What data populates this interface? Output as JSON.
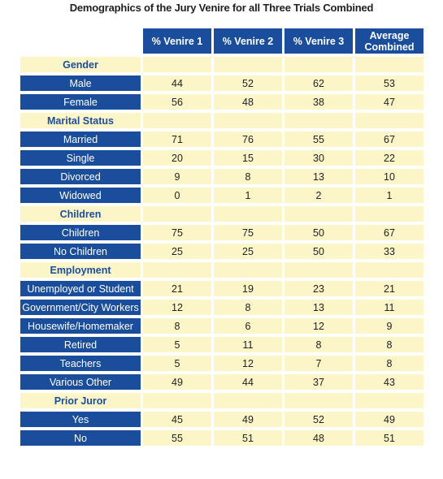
{
  "title": "Demographics of the Jury Venire for all Three Trials Combined",
  "columns": [
    "% Venire 1",
    "% Venire 2",
    "% Venire 3",
    "Average\nCombined"
  ],
  "sections": [
    {
      "name": "Gender",
      "rows": [
        {
          "label": "Male",
          "values": [
            "44",
            "52",
            "62",
            "53"
          ]
        },
        {
          "label": "Female",
          "values": [
            "56",
            "48",
            "38",
            "47"
          ]
        }
      ]
    },
    {
      "name": "Marital Status",
      "rows": [
        {
          "label": "Married",
          "values": [
            "71",
            "76",
            "55",
            "67"
          ]
        },
        {
          "label": "Single",
          "values": [
            "20",
            "15",
            "30",
            "22"
          ]
        },
        {
          "label": "Divorced",
          "values": [
            "9",
            "8",
            "13",
            "10"
          ]
        },
        {
          "label": "Widowed",
          "values": [
            "0",
            "1",
            "2",
            "1"
          ]
        }
      ]
    },
    {
      "name": "Children",
      "rows": [
        {
          "label": "Children",
          "values": [
            "75",
            "75",
            "50",
            "67"
          ]
        },
        {
          "label": "No Children",
          "values": [
            "25",
            "25",
            "50",
            "33"
          ]
        }
      ]
    },
    {
      "name": "Employment",
      "rows": [
        {
          "label": "Unemployed or Student",
          "values": [
            "21",
            "19",
            "23",
            "21"
          ]
        },
        {
          "label": "Government/City Workers",
          "values": [
            "12",
            "8",
            "13",
            "11"
          ]
        },
        {
          "label": "Housewife/Homemaker",
          "values": [
            "8",
            "6",
            "12",
            "9"
          ]
        },
        {
          "label": "Retired",
          "values": [
            "5",
            "11",
            "8",
            "8"
          ]
        },
        {
          "label": "Teachers",
          "values": [
            "5",
            "12",
            "7",
            "8"
          ]
        },
        {
          "label": "Various Other",
          "values": [
            "49",
            "44",
            "37",
            "43"
          ]
        }
      ]
    },
    {
      "name": "Prior Juror",
      "rows": [
        {
          "label": "Yes",
          "values": [
            "45",
            "49",
            "52",
            "49"
          ]
        },
        {
          "label": "No",
          "values": [
            "55",
            "51",
            "48",
            "51"
          ]
        }
      ]
    }
  ]
}
